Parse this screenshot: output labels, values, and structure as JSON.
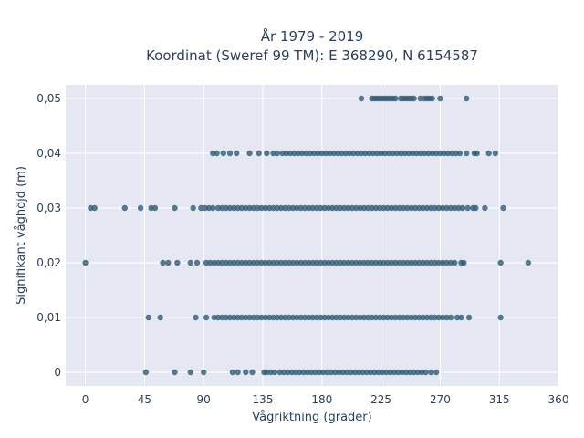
{
  "chart_data": {
    "type": "scatter",
    "title": "År 1979 - 2019",
    "subtitle": "Koordinat (Sweref 99 TM): E 368290, N 6154587",
    "xlabel": "Vågriktning (grader)",
    "ylabel": "Signifikant våghöjd (m)",
    "xlim": [
      -15,
      360
    ],
    "ylim": [
      -0.0025,
      0.0525
    ],
    "x_ticks": [
      0,
      45,
      90,
      135,
      180,
      225,
      270,
      315,
      360
    ],
    "x_tick_labels": [
      "0",
      "45",
      "90",
      "135",
      "180",
      "225",
      "270",
      "315",
      "360"
    ],
    "y_ticks": [
      0,
      0.01,
      0.02,
      0.03,
      0.04,
      0.05
    ],
    "y_tick_labels": [
      "0",
      "0,01",
      "0,02",
      "0,03",
      "0,04",
      "0,05"
    ],
    "grid": true,
    "marker_color": "#2f5a74",
    "plot_background": "#e5e8f2",
    "series": [
      {
        "y": 0.05,
        "x": [
          210,
          218,
          220,
          222,
          224,
          226,
          228,
          230,
          232,
          234,
          236,
          240,
          242,
          244,
          246,
          248,
          250,
          255,
          258,
          260,
          262,
          264,
          270,
          290
        ]
      },
      {
        "y": 0.04,
        "x": [
          97,
          100,
          105,
          110,
          115,
          125,
          132,
          138,
          143,
          146,
          150,
          153,
          156,
          159,
          162,
          165,
          168,
          171,
          174,
          177,
          180,
          183,
          186,
          189,
          192,
          195,
          198,
          201,
          204,
          207,
          210,
          213,
          216,
          219,
          222,
          225,
          228,
          231,
          234,
          237,
          240,
          243,
          246,
          249,
          252,
          255,
          258,
          261,
          264,
          267,
          270,
          273,
          276,
          279,
          282,
          285,
          290,
          296,
          298,
          307,
          312
        ]
      },
      {
        "y": 0.03,
        "x": [
          4,
          7,
          30,
          42,
          50,
          53,
          68,
          82,
          88,
          91,
          94,
          97,
          101,
          104,
          107,
          110,
          113,
          116,
          119,
          122,
          125,
          128,
          131,
          134,
          137,
          140,
          143,
          146,
          149,
          152,
          155,
          158,
          161,
          164,
          167,
          170,
          173,
          176,
          179,
          182,
          185,
          188,
          191,
          194,
          197,
          200,
          203,
          206,
          209,
          212,
          215,
          218,
          221,
          224,
          227,
          230,
          233,
          236,
          239,
          242,
          245,
          248,
          251,
          254,
          257,
          260,
          263,
          266,
          269,
          272,
          275,
          278,
          281,
          284,
          287,
          291,
          295,
          297,
          304,
          318
        ]
      },
      {
        "y": 0.02,
        "x": [
          0,
          59,
          63,
          70,
          80,
          85,
          92,
          95,
          98,
          101,
          104,
          107,
          110,
          113,
          116,
          119,
          122,
          125,
          128,
          131,
          134,
          137,
          140,
          143,
          146,
          149,
          152,
          155,
          158,
          161,
          164,
          167,
          170,
          173,
          176,
          179,
          182,
          185,
          188,
          191,
          194,
          197,
          200,
          203,
          206,
          209,
          212,
          215,
          218,
          221,
          224,
          227,
          230,
          233,
          236,
          239,
          242,
          245,
          248,
          251,
          254,
          257,
          260,
          263,
          266,
          269,
          272,
          275,
          278,
          281,
          286,
          288,
          316,
          337
        ]
      },
      {
        "y": 0.01,
        "x": [
          48,
          57,
          84,
          92,
          98,
          101,
          104,
          107,
          110,
          113,
          116,
          119,
          122,
          125,
          128,
          131,
          134,
          137,
          140,
          143,
          146,
          149,
          152,
          155,
          158,
          161,
          164,
          167,
          170,
          173,
          176,
          179,
          182,
          185,
          188,
          191,
          194,
          197,
          200,
          203,
          206,
          209,
          212,
          215,
          218,
          221,
          224,
          227,
          230,
          233,
          236,
          239,
          242,
          245,
          248,
          251,
          254,
          257,
          260,
          263,
          266,
          269,
          272,
          275,
          278,
          283,
          286,
          292,
          316
        ]
      },
      {
        "y": 0.0,
        "x": [
          46,
          68,
          80,
          90,
          112,
          116,
          122,
          127,
          136,
          138,
          141,
          144,
          148,
          151,
          154,
          157,
          160,
          163,
          166,
          169,
          172,
          175,
          178,
          181,
          184,
          187,
          190,
          193,
          196,
          199,
          202,
          205,
          208,
          211,
          214,
          217,
          220,
          223,
          226,
          229,
          232,
          235,
          238,
          241,
          244,
          247,
          250,
          253,
          256,
          259,
          263,
          267
        ]
      }
    ]
  }
}
